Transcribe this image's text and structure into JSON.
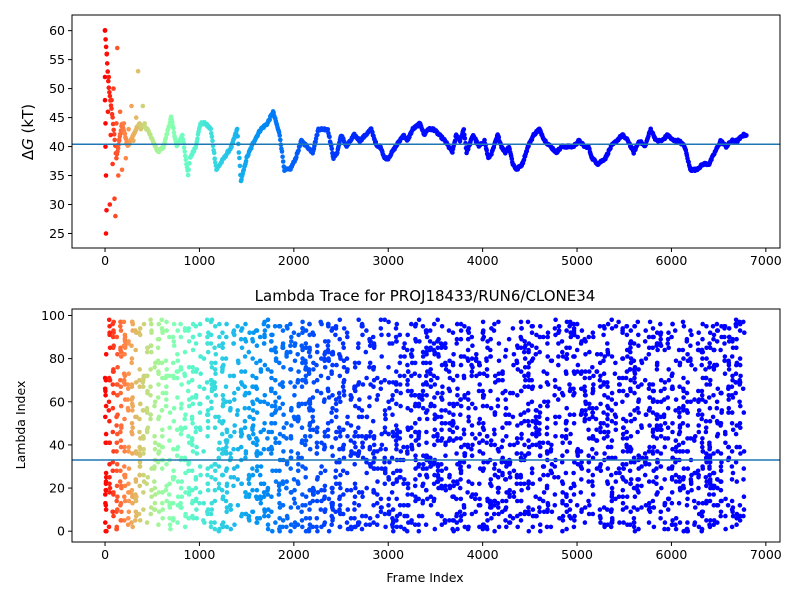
{
  "chart_data": [
    {
      "type": "scatter",
      "title": "",
      "xlabel": "",
      "ylabel": "ΔG (kT)",
      "ylabel_parts": {
        "symbol": "Δ",
        "var": "G",
        "unit": " (kT)"
      },
      "xlim": [
        -350,
        7150
      ],
      "ylim": [
        22.5,
        62.7
      ],
      "xticks": [
        0,
        1000,
        2000,
        3000,
        4000,
        5000,
        6000,
        7000
      ],
      "yticks": [
        25,
        30,
        35,
        40,
        45,
        50,
        55,
        60
      ],
      "hline": 40.4,
      "hline_color": "#1f77b4",
      "colormap": "rainbow (reversed by frame index)",
      "grid": false,
      "series_path": [
        [
          0,
          60
        ],
        [
          40,
          50
        ],
        [
          80,
          45
        ],
        [
          120,
          38
        ],
        [
          180,
          44
        ],
        [
          240,
          40
        ],
        [
          300,
          42
        ],
        [
          360,
          44
        ],
        [
          450,
          43
        ],
        [
          560,
          39
        ],
        [
          620,
          40
        ],
        [
          700,
          45
        ],
        [
          760,
          40
        ],
        [
          820,
          42
        ],
        [
          880,
          35
        ],
        [
          900,
          38
        ],
        [
          960,
          40
        ],
        [
          1010,
          44
        ],
        [
          1060,
          44
        ],
        [
          1120,
          43
        ],
        [
          1180,
          36
        ],
        [
          1260,
          38
        ],
        [
          1340,
          40
        ],
        [
          1400,
          43
        ],
        [
          1440,
          34
        ],
        [
          1500,
          38
        ],
        [
          1580,
          41
        ],
        [
          1650,
          43
        ],
        [
          1720,
          44
        ],
        [
          1780,
          46
        ],
        [
          1850,
          42
        ],
        [
          1900,
          36
        ],
        [
          1960,
          36
        ],
        [
          2020,
          38
        ],
        [
          2080,
          41
        ],
        [
          2140,
          40
        ],
        [
          2200,
          39
        ],
        [
          2260,
          43
        ],
        [
          2360,
          43
        ],
        [
          2420,
          38
        ],
        [
          2460,
          39
        ],
        [
          2500,
          42
        ],
        [
          2560,
          40
        ],
        [
          2640,
          42
        ],
        [
          2700,
          41
        ],
        [
          2760,
          42
        ],
        [
          2820,
          43
        ],
        [
          2880,
          40
        ],
        [
          2920,
          40
        ],
        [
          2960,
          38
        ],
        [
          3000,
          38
        ],
        [
          3080,
          40
        ],
        [
          3160,
          42
        ],
        [
          3200,
          41
        ],
        [
          3260,
          43
        ],
        [
          3340,
          44
        ],
        [
          3380,
          42
        ],
        [
          3420,
          43
        ],
        [
          3480,
          43
        ],
        [
          3540,
          42
        ],
        [
          3600,
          41
        ],
        [
          3680,
          39
        ],
        [
          3720,
          42
        ],
        [
          3760,
          41
        ],
        [
          3800,
          43
        ],
        [
          3830,
          39
        ],
        [
          3900,
          42
        ],
        [
          3960,
          40
        ],
        [
          4020,
          41
        ],
        [
          4060,
          38
        ],
        [
          4100,
          39
        ],
        [
          4160,
          42
        ],
        [
          4200,
          40
        ],
        [
          4240,
          39
        ],
        [
          4280,
          40
        ],
        [
          4320,
          37
        ],
        [
          4360,
          36
        ],
        [
          4420,
          37
        ],
        [
          4480,
          40
        ],
        [
          4540,
          42
        ],
        [
          4600,
          43
        ],
        [
          4660,
          41
        ],
        [
          4720,
          40
        ],
        [
          4780,
          39
        ],
        [
          4840,
          40
        ],
        [
          4900,
          40
        ],
        [
          4960,
          40
        ],
        [
          5020,
          41
        ],
        [
          5080,
          40
        ],
        [
          5120,
          40
        ],
        [
          5160,
          38
        ],
        [
          5220,
          37
        ],
        [
          5300,
          38
        ],
        [
          5360,
          40
        ],
        [
          5420,
          41
        ],
        [
          5480,
          42
        ],
        [
          5540,
          41
        ],
        [
          5600,
          39
        ],
        [
          5660,
          41
        ],
        [
          5720,
          40
        ],
        [
          5780,
          43
        ],
        [
          5840,
          41
        ],
        [
          5900,
          41
        ],
        [
          5960,
          42
        ],
        [
          6020,
          41
        ],
        [
          6080,
          41
        ],
        [
          6140,
          40
        ],
        [
          6200,
          36
        ],
        [
          6260,
          36
        ],
        [
          6340,
          37
        ],
        [
          6400,
          37
        ],
        [
          6460,
          39
        ],
        [
          6520,
          41
        ],
        [
          6580,
          40
        ],
        [
          6640,
          41
        ],
        [
          6700,
          41
        ],
        [
          6760,
          42
        ],
        [
          6800,
          42
        ]
      ],
      "early_scatter": [
        [
          0,
          60
        ],
        [
          0,
          52
        ],
        [
          0,
          48
        ],
        [
          5,
          44
        ],
        [
          5,
          40
        ],
        [
          10,
          35
        ],
        [
          10,
          25
        ],
        [
          15,
          29
        ],
        [
          20,
          56
        ],
        [
          30,
          46
        ],
        [
          40,
          52
        ],
        [
          50,
          30
        ],
        [
          60,
          42
        ],
        [
          70,
          48
        ],
        [
          80,
          37
        ],
        [
          90,
          50
        ],
        [
          100,
          31
        ],
        [
          110,
          28
        ],
        [
          120,
          44
        ],
        [
          130,
          57
        ],
        [
          140,
          35
        ],
        [
          150,
          41
        ],
        [
          160,
          46
        ],
        [
          180,
          36
        ],
        [
          200,
          44
        ],
        [
          220,
          38
        ],
        [
          250,
          43
        ],
        [
          280,
          47
        ],
        [
          300,
          41
        ],
        [
          330,
          45
        ],
        [
          350,
          53
        ],
        [
          380,
          43
        ],
        [
          400,
          47
        ],
        [
          420,
          44
        ]
      ]
    },
    {
      "type": "scatter",
      "title": "Lambda Trace for PROJ18433/RUN6/CLONE34",
      "xlabel": "Frame Index",
      "ylabel": "Lambda Index",
      "xlim": [
        -350,
        7150
      ],
      "ylim": [
        -5,
        103
      ],
      "xticks": [
        0,
        1000,
        2000,
        3000,
        4000,
        5000,
        6000,
        7000
      ],
      "yticks": [
        0,
        20,
        40,
        60,
        80,
        100
      ],
      "hline": 33,
      "hline_color": "#1f77b4",
      "colormap": "rainbow (reversed by frame index)",
      "grid": false,
      "n_frames": 6800,
      "lambda_range": [
        0,
        98
      ]
    }
  ]
}
